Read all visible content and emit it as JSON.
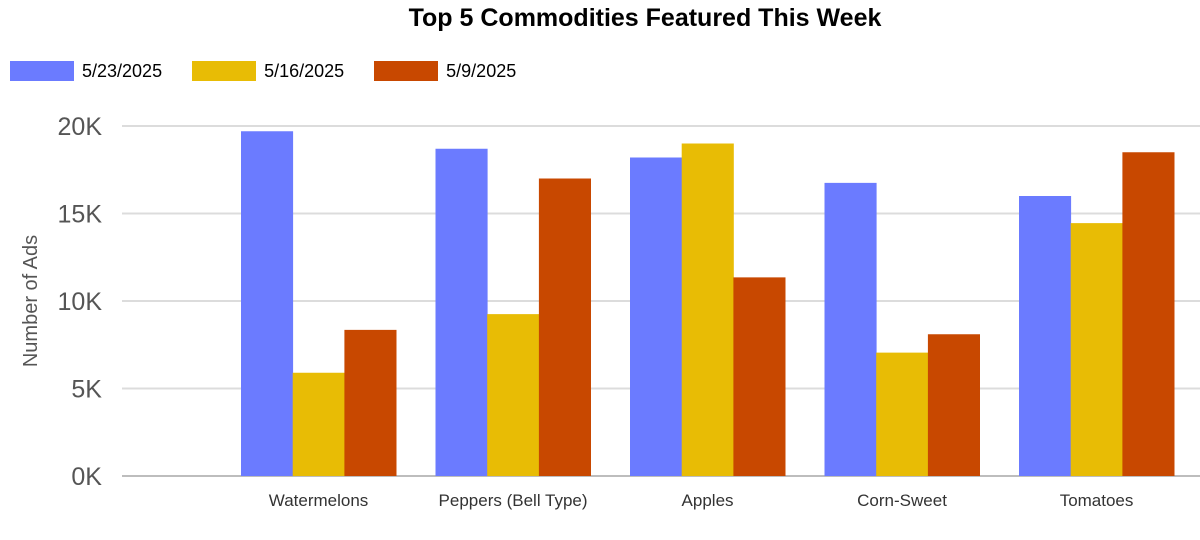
{
  "chart_data": {
    "type": "bar",
    "title": "Top 5 Commodities Featured This Week",
    "xlabel": "",
    "ylabel": "Number of Ads",
    "categories": [
      "Watermelons",
      "Peppers (Bell Type)",
      "Apples",
      "Corn-Sweet",
      "Tomatoes"
    ],
    "series": [
      {
        "name": "5/23/2025",
        "color": "#6b7bff",
        "values": [
          19700,
          18700,
          18200,
          16750,
          16000
        ]
      },
      {
        "name": "5/16/2025",
        "color": "#e8bc05",
        "values": [
          5900,
          9250,
          19000,
          7050,
          14450
        ]
      },
      {
        "name": "5/9/2025",
        "color": "#c84800",
        "values": [
          8350,
          17000,
          11350,
          8100,
          18500
        ]
      }
    ],
    "ylim": [
      0,
      20000
    ],
    "yticks": [
      0,
      5000,
      10000,
      15000,
      20000
    ],
    "ytick_labels": [
      "0K",
      "5K",
      "10K",
      "15K",
      "20K"
    ],
    "grid": true,
    "legend": "top-left"
  }
}
